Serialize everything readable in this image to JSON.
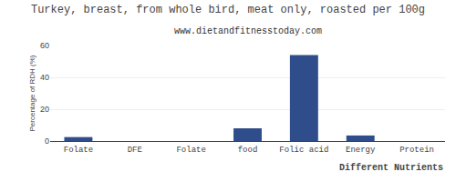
{
  "chart_data": {
    "type": "bar",
    "title": "Turkey, breast, from whole bird, meat only, roasted per 100g",
    "subtitle": "www.dietandfitnesstoday.com",
    "xlabel": "Different Nutrients",
    "ylabel": "Percentage of RDH (%)",
    "categories": [
      "Folate",
      "DFE",
      "Folate",
      "food",
      "Folic acid",
      "Energy",
      "Protein"
    ],
    "values": [
      2.5,
      0,
      0,
      8,
      54,
      3.5,
      0
    ],
    "color": "#2e4d8a",
    "ylim": [
      0,
      60
    ],
    "yticks": [
      0,
      20,
      40,
      60
    ],
    "grid": true
  }
}
